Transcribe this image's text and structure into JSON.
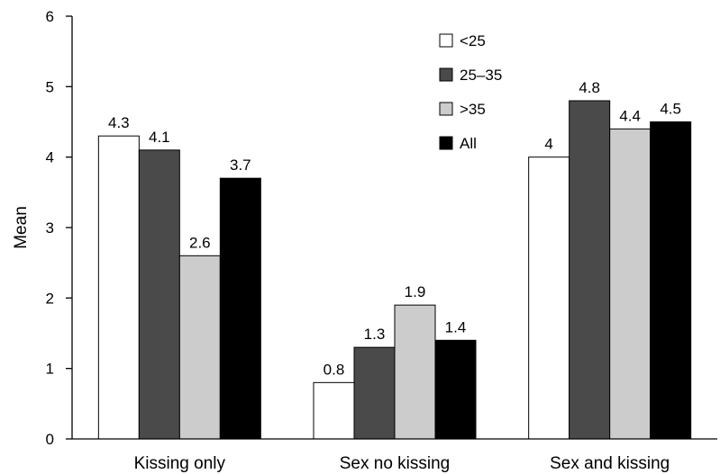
{
  "chart_data": {
    "type": "bar",
    "title": "",
    "xlabel": "",
    "ylabel": "Mean",
    "ylim": [
      0,
      6
    ],
    "yticks": [
      0,
      1,
      2,
      3,
      4,
      5,
      6
    ],
    "grid": false,
    "legend_position": "top-center",
    "categories": [
      "Kissing only",
      "Sex no kissing",
      "Sex and kissing"
    ],
    "series": [
      {
        "name": "<25",
        "color": "#ffffff",
        "values": [
          4.3,
          0.8,
          4
        ],
        "labels": [
          "4.3",
          "0.8",
          "4"
        ]
      },
      {
        "name": "25–35",
        "color": "#4a4a4a",
        "values": [
          4.1,
          1.3,
          4.8
        ],
        "labels": [
          "4.1",
          "1.3",
          "4.8"
        ]
      },
      {
        "name": ">35",
        "color": "#cccccc",
        "values": [
          2.6,
          1.9,
          4.4
        ],
        "labels": [
          "2.6",
          "1.9",
          "4.4"
        ]
      },
      {
        "name": "All",
        "color": "#000000",
        "values": [
          3.7,
          1.4,
          4.5
        ],
        "labels": [
          "3.7",
          "1.4",
          "4.5"
        ]
      }
    ]
  }
}
